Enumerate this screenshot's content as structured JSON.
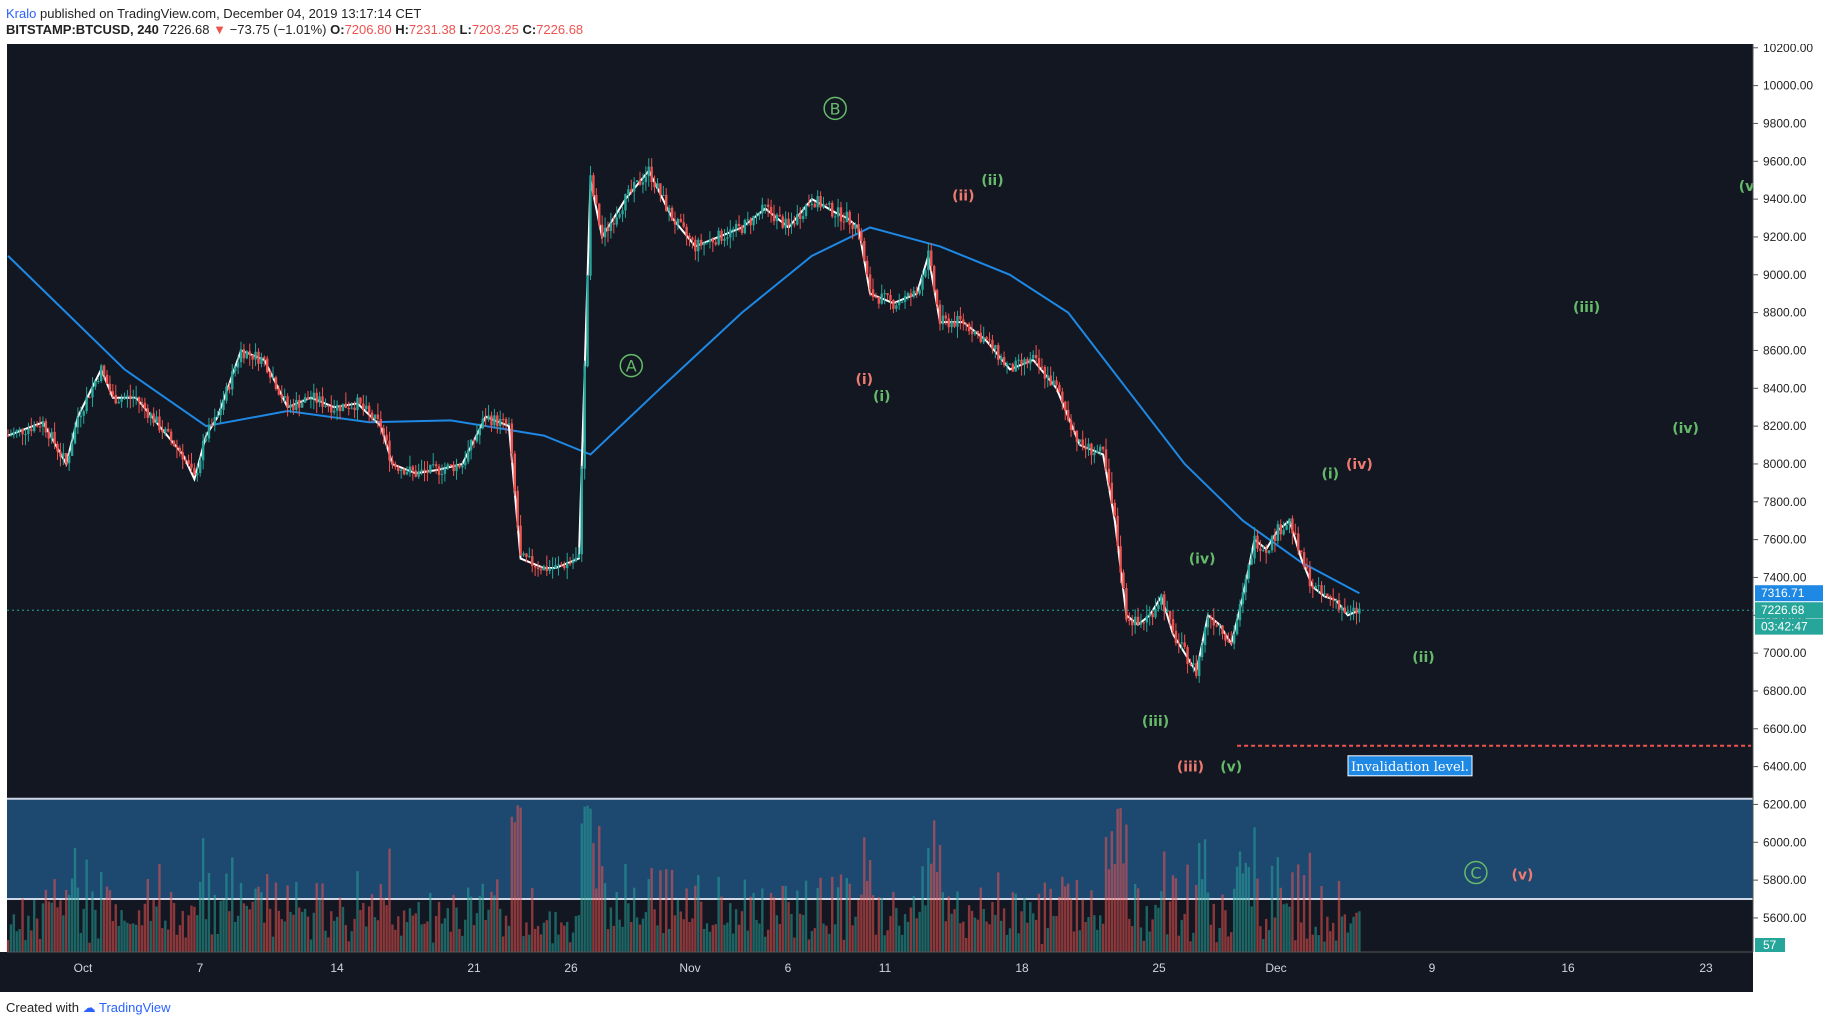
{
  "header": {
    "author": "Kralo",
    "published": "published on TradingView.com, December 04, 2019 13:17:14 CET",
    "symbol": "BITSTAMP:BTCUSD, 240",
    "last": "7226.68",
    "change": "−73.75 (−1.01%)",
    "open_label": "O:",
    "open": "7206.80",
    "high_label": "H:",
    "high": "7231.38",
    "low_label": "L:",
    "low": "7203.25",
    "close_label": "C:",
    "close": "7226.68"
  },
  "footer": {
    "created_with": "Created with",
    "brand": "TradingView"
  },
  "colors": {
    "background": "#131722",
    "up": "#26a69a",
    "down": "#ef5350",
    "ma_slow": "#1e88e5",
    "ma_fast": "#ffffff",
    "zone": "#1f4e79",
    "green_label": "#66bb6a",
    "red_label": "#ef7b70"
  },
  "chart_data": {
    "type": "candlestick",
    "price_axis": {
      "ticks": [
        "10200.00",
        "10000.00",
        "9800.00",
        "9600.00",
        "9400.00",
        "9200.00",
        "9000.00",
        "8800.00",
        "8600.00",
        "8400.00",
        "8200.00",
        "8000.00",
        "7800.00",
        "7600.00",
        "7400.00",
        "7200.00",
        "7000.00",
        "6800.00",
        "6600.00",
        "6400.00",
        "6200.00",
        "6000.00",
        "5800.00",
        "5600.00"
      ],
      "ylim": [
        5420,
        10220
      ]
    },
    "time_axis": {
      "labels": [
        "Oct",
        "7",
        "14",
        "21",
        "26",
        "Nov",
        "6",
        "11",
        "18",
        "25",
        "Dec",
        "9",
        "16",
        "23"
      ]
    },
    "price_path": [
      [
        0,
        8150
      ],
      [
        3,
        8220
      ],
      [
        5,
        8000
      ],
      [
        6,
        8250
      ],
      [
        8,
        8500
      ],
      [
        9,
        8350
      ],
      [
        11,
        8350
      ],
      [
        13,
        8200
      ],
      [
        15,
        8050
      ],
      [
        16,
        7920
      ],
      [
        17,
        8150
      ],
      [
        18,
        8250
      ],
      [
        20,
        8600
      ],
      [
        22,
        8550
      ],
      [
        24,
        8300
      ],
      [
        26,
        8350
      ],
      [
        28,
        8300
      ],
      [
        30,
        8320
      ],
      [
        32,
        8200
      ],
      [
        33,
        8000
      ],
      [
        35,
        7950
      ],
      [
        37,
        7970
      ],
      [
        39,
        8000
      ],
      [
        41,
        8250
      ],
      [
        43,
        8200
      ],
      [
        44,
        7500
      ],
      [
        46,
        7450
      ],
      [
        47,
        7450
      ],
      [
        49,
        7500
      ],
      [
        50,
        9500
      ],
      [
        51,
        9200
      ],
      [
        53,
        9400
      ],
      [
        55,
        9550
      ],
      [
        57,
        9300
      ],
      [
        59,
        9150
      ],
      [
        61,
        9200
      ],
      [
        63,
        9250
      ],
      [
        65,
        9350
      ],
      [
        67,
        9250
      ],
      [
        69,
        9400
      ],
      [
        71,
        9330
      ],
      [
        72,
        9300
      ],
      [
        73,
        9250
      ],
      [
        74,
        8900
      ],
      [
        76,
        8850
      ],
      [
        78,
        8900
      ],
      [
        79,
        9100
      ],
      [
        80,
        8750
      ],
      [
        82,
        8750
      ],
      [
        84,
        8650
      ],
      [
        86,
        8500
      ],
      [
        88,
        8550
      ],
      [
        90,
        8400
      ],
      [
        92,
        8100
      ],
      [
        94,
        8050
      ],
      [
        95,
        7700
      ],
      [
        96,
        7200
      ],
      [
        97,
        7150
      ],
      [
        98,
        7200
      ],
      [
        99,
        7300
      ],
      [
        100,
        7100
      ],
      [
        101,
        7000
      ],
      [
        102,
        6900
      ],
      [
        103,
        7200
      ],
      [
        104,
        7150
      ],
      [
        105,
        7050
      ],
      [
        106,
        7300
      ],
      [
        107,
        7600
      ],
      [
        108,
        7550
      ],
      [
        109,
        7650
      ],
      [
        110,
        7700
      ],
      [
        111,
        7500
      ],
      [
        112,
        7350
      ],
      [
        113,
        7300
      ],
      [
        114,
        7280
      ],
      [
        115,
        7200
      ],
      [
        116,
        7226.68
      ]
    ],
    "ma_slow": [
      [
        0,
        9100
      ],
      [
        10,
        8500
      ],
      [
        17,
        8200
      ],
      [
        24,
        8280
      ],
      [
        31,
        8220
      ],
      [
        38,
        8230
      ],
      [
        46,
        8150
      ],
      [
        50,
        8050
      ],
      [
        56,
        8400
      ],
      [
        63,
        8800
      ],
      [
        69,
        9100
      ],
      [
        74,
        9250
      ],
      [
        80,
        9150
      ],
      [
        86,
        9000
      ],
      [
        91,
        8800
      ],
      [
        96,
        8400
      ],
      [
        101,
        8000
      ],
      [
        106,
        7700
      ],
      [
        111,
        7480
      ],
      [
        116,
        7316.71
      ]
    ],
    "current_price": 7226.68,
    "price_labels": [
      {
        "text": "7316.71",
        "price": 7316.71,
        "color": "#1e88e5"
      },
      {
        "text": "7226.68",
        "price": 7226.68,
        "color": "#26a69a"
      },
      {
        "text": "03:42:47",
        "price": 7140,
        "color": "#26a69a"
      }
    ],
    "invalidation": {
      "price": 6510,
      "label": "Invalidation level."
    },
    "zone": {
      "top": 6230,
      "bottom": 5700
    },
    "wave_labels": [
      {
        "text": "A",
        "circled": true,
        "color": "#66bb6a",
        "bar": 53.5,
        "price": 8520
      },
      {
        "text": "B",
        "circled": true,
        "color": "#66bb6a",
        "bar": 71,
        "price": 9880
      },
      {
        "text": "C",
        "circled": true,
        "color": "#66bb6a",
        "bar": 126,
        "price": 5840
      },
      {
        "text": "(i)",
        "color": "#ef7b70",
        "bar": 73.5,
        "price": 8450
      },
      {
        "text": "(i)",
        "color": "#66bb6a",
        "bar": 75,
        "price": 8360
      },
      {
        "text": "(ii)",
        "color": "#ef7b70",
        "bar": 82,
        "price": 9420
      },
      {
        "text": "(ii)",
        "color": "#66bb6a",
        "bar": 84.5,
        "price": 9500
      },
      {
        "text": "(iii)",
        "color": "#66bb6a",
        "bar": 98.5,
        "price": 6640
      },
      {
        "text": "(iii)",
        "color": "#ef7b70",
        "bar": 101.5,
        "price": 6400
      },
      {
        "text": "(iv)",
        "color": "#66bb6a",
        "bar": 102.5,
        "price": 7500
      },
      {
        "text": "(v)",
        "color": "#66bb6a",
        "bar": 105,
        "price": 6400
      },
      {
        "text": "(i)",
        "color": "#66bb6a",
        "bar": 113.5,
        "price": 7950
      },
      {
        "text": "(iv)",
        "color": "#ef7b70",
        "bar": 116,
        "price": 8000
      },
      {
        "text": "(ii)",
        "color": "#66bb6a",
        "bar": 121.5,
        "price": 6980
      },
      {
        "text": "(iii)",
        "color": "#66bb6a",
        "bar": 135.5,
        "price": 8830
      },
      {
        "text": "(iv)",
        "color": "#66bb6a",
        "bar": 144,
        "price": 8190
      },
      {
        "text": "(v)",
        "color": "#66bb6a",
        "bar": 149.5,
        "price": 9470
      },
      {
        "text": "(v)",
        "color": "#ef7b70",
        "bar": 130,
        "price": 5830
      }
    ],
    "volume_last": "57"
  }
}
